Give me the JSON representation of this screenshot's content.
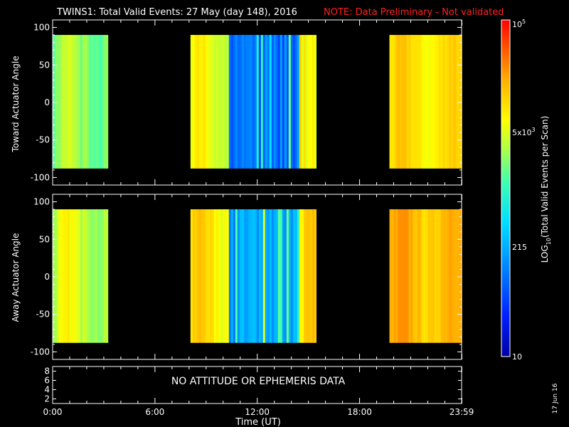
{
  "title": "TWINS1: Total Valid Events: 27 May (day 148), 2016",
  "note": "NOTE: Data Preliminary - Not validated",
  "colors": {
    "background": "#000000",
    "note": "#ff2020",
    "foreground": "#ffffff"
  },
  "chart_data": [
    {
      "type": "heatmap",
      "panel": "top",
      "ylabel": "Toward Actuator Angle",
      "ylim": [
        -110,
        110
      ],
      "yticks": [
        "100",
        "50",
        "0",
        "-50",
        "-100"
      ],
      "xlim": [
        "0:00",
        "23:59"
      ],
      "angle_range": [
        -88,
        90
      ],
      "data_intervals_ut": [
        [
          "0:00",
          "3:15"
        ],
        [
          "8:05",
          "15:25"
        ],
        [
          "19:45",
          "23:59"
        ]
      ],
      "color_scale": "log10 events per scan, approx 10 to 100000"
    },
    {
      "type": "heatmap",
      "panel": "middle",
      "ylabel": "Away Actuator Angle",
      "ylim": [
        -110,
        110
      ],
      "yticks": [
        "100",
        "50",
        "0",
        "-50",
        "-100"
      ],
      "xlim": [
        "0:00",
        "23:59"
      ],
      "angle_range": [
        -88,
        90
      ],
      "data_intervals_ut": [
        [
          "0:00",
          "3:15"
        ],
        [
          "8:05",
          "15:25"
        ],
        [
          "19:45",
          "23:59"
        ]
      ],
      "color_scale": "log10 events per scan, approx 10 to 100000"
    },
    {
      "type": "line",
      "panel": "bottom",
      "yticks": [
        "8",
        "6",
        "4",
        "2"
      ],
      "message": "NO ATTITUDE OR EPHEMERIS DATA"
    }
  ],
  "x_axis": {
    "ticks": [
      "0:00",
      "6:00",
      "12:00",
      "18:00",
      "23:59"
    ],
    "label": "Time (UT)"
  },
  "colorbar": {
    "label": "LOG10(Total Valid Events per Scan)",
    "labels": [
      "10^5",
      "5x10^3",
      "215",
      "10"
    ],
    "label_top": "10",
    "label_top_sup": "5",
    "label_mid_base": "5x10",
    "label_mid_sup": "3",
    "label_mid2": "215",
    "label_bottom": "10",
    "label_text_main": "LOG",
    "label_text_sub": "10",
    "label_text_rest": "(Total Valid Events per Scan)"
  },
  "date_stamp": "17 Jun 16"
}
